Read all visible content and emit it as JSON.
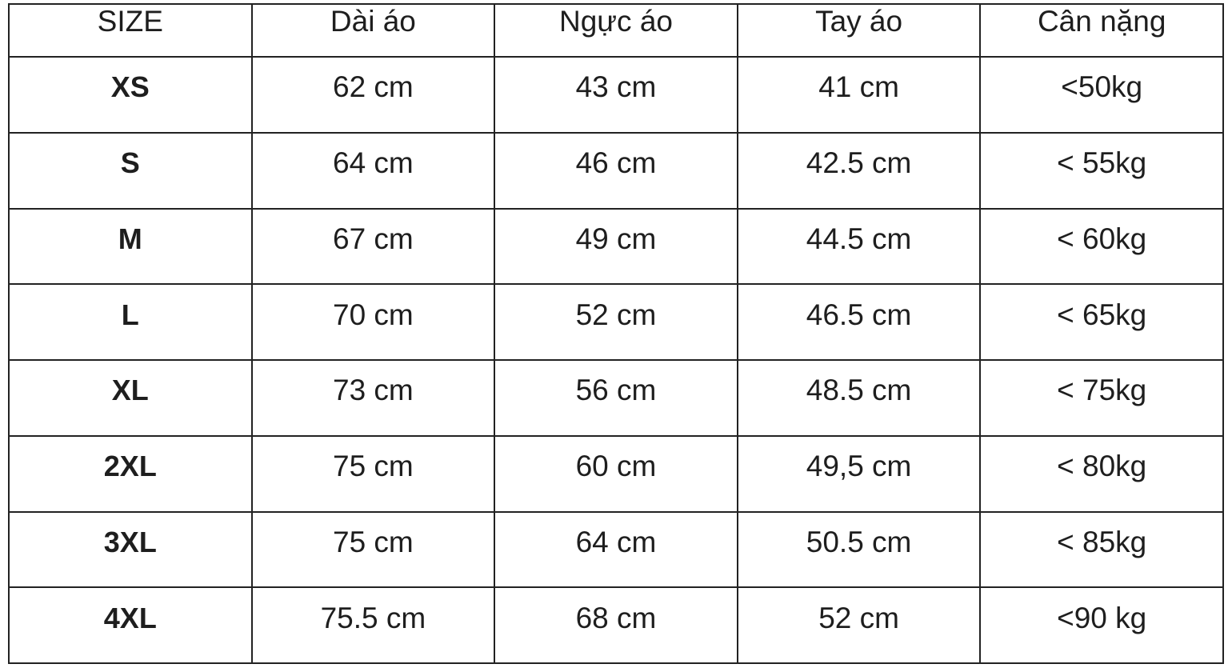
{
  "table": {
    "header": [
      "SIZE",
      "Dài áo",
      "Ngực áo",
      "Tay áo",
      "Cân nặng"
    ],
    "rows": [
      [
        "XS",
        "62 cm",
        "43 cm",
        "41 cm",
        "<50kg"
      ],
      [
        "S",
        "64 cm",
        "46 cm",
        "42.5 cm",
        "< 55kg"
      ],
      [
        "M",
        "67 cm",
        "49 cm",
        "44.5 cm",
        "< 60kg"
      ],
      [
        "L",
        "70 cm",
        "52 cm",
        "46.5 cm",
        "< 65kg"
      ],
      [
        "XL",
        "73 cm",
        "56 cm",
        "48.5 cm",
        "< 75kg"
      ],
      [
        "2XL",
        "75 cm",
        "60 cm",
        "49,5 cm",
        "< 80kg"
      ],
      [
        "3XL",
        "75 cm",
        "64 cm",
        "50.5 cm",
        "< 85kg"
      ],
      [
        "4XL",
        "75.5 cm",
        "68 cm",
        "52 cm",
        "<90 kg"
      ]
    ]
  }
}
